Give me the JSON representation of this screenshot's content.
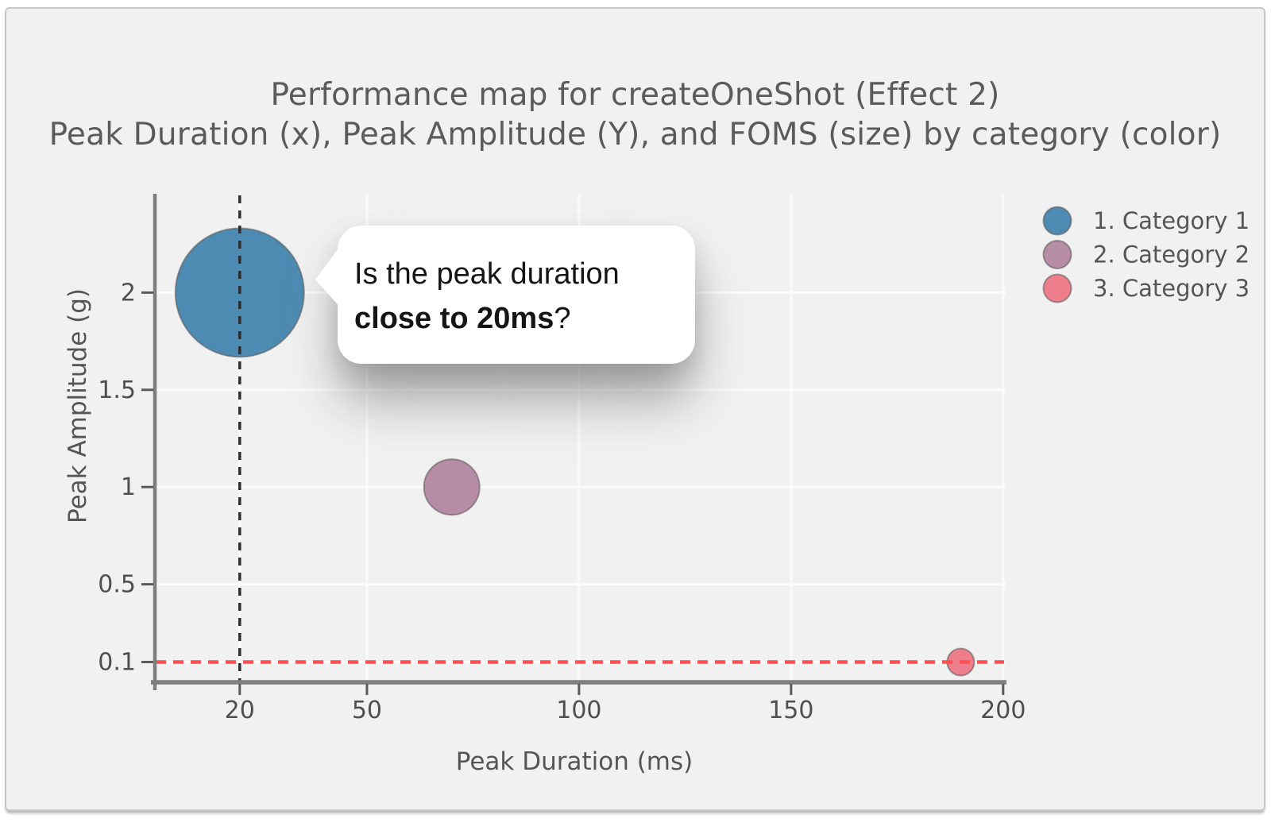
{
  "card": {
    "background": "#f1f1f2",
    "border_color": "#c7c7c7"
  },
  "chart_data": {
    "type": "scatter",
    "subtype": "bubble",
    "title": "Performance map for createOneShot (Effect 2)",
    "subtitle": "Peak Duration (x), Peak Amplitude (Y), and FOMS (size) by category (color)",
    "xlabel": "Peak Duration (ms)",
    "ylabel": "Peak Amplitude (g)",
    "xlim": [
      0,
      200.6
    ],
    "ylim": [
      0,
      2.5
    ],
    "xticks": [
      20,
      50,
      100,
      150,
      200
    ],
    "yticks": [
      0.1,
      0.5,
      1,
      1.5,
      2
    ],
    "grid": true,
    "legend_position": "top-right",
    "series": [
      {
        "name": "1. Category 1",
        "color": "#4e8bb2",
        "points": [
          {
            "x": 20,
            "y": 2,
            "radius_px": 81
          }
        ]
      },
      {
        "name": "2. Category 2",
        "color": "#b78ca5",
        "points": [
          {
            "x": 70,
            "y": 1,
            "radius_px": 35
          }
        ]
      },
      {
        "name": "3. Category 3",
        "color": "#ee7e8b",
        "points": [
          {
            "x": 190,
            "y": 0.1,
            "radius_px": 17
          }
        ]
      }
    ],
    "reference_lines": [
      {
        "axis": "x",
        "value": 20,
        "style": "dotted",
        "color": "#2e2e2e",
        "width": 3.5,
        "dash": "10 9"
      },
      {
        "axis": "y",
        "value": 0.1,
        "style": "dashed",
        "color": "#fb5151",
        "width": 4.5,
        "dash": "13 9"
      }
    ],
    "axis_colors": {
      "line": "#7e7e7e",
      "tick_text": "#4f4f4f",
      "grid": "#fbfbfb"
    }
  },
  "tooltip": {
    "line1": "Is the peak duration",
    "line2_bold": "close to 20ms",
    "line2_suffix": "?"
  }
}
